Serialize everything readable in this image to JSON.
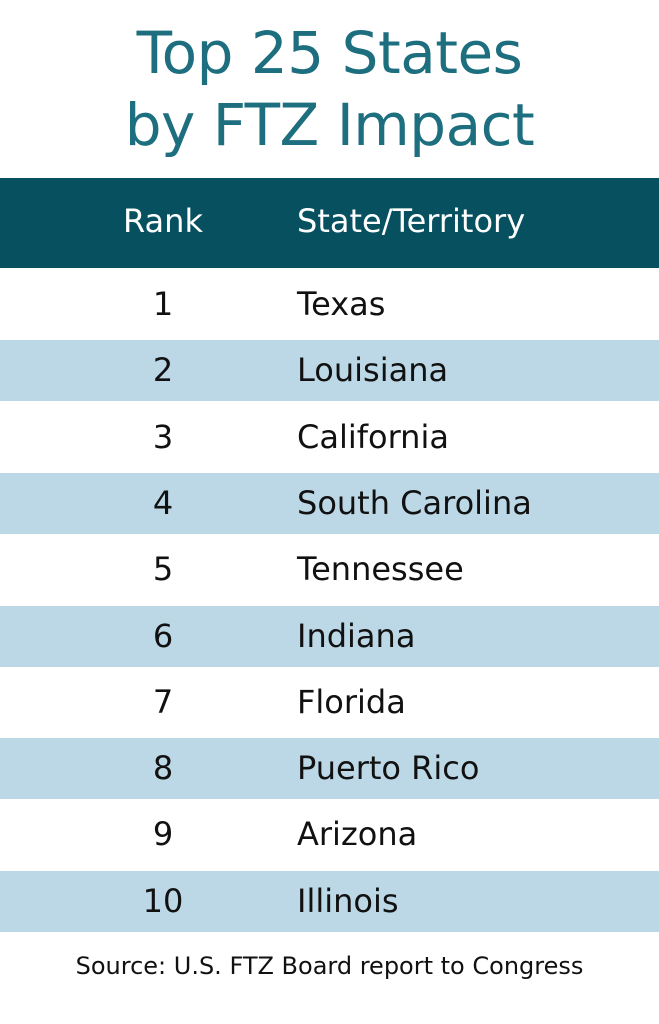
{
  "header": {
    "title": [
      "Top 25 States",
      "by FTZ Impact"
    ]
  },
  "table": {
    "columns": [
      "Rank",
      "State/Territory"
    ],
    "rows": [
      [
        1,
        "Texas"
      ],
      [
        2,
        "Louisiana"
      ],
      [
        3,
        "California"
      ],
      [
        4,
        "South Carolina"
      ],
      [
        5,
        "Tennessee"
      ],
      [
        6,
        "Indiana"
      ],
      [
        7,
        "Florida"
      ],
      [
        8,
        "Puerto Rico"
      ],
      [
        9,
        "Arizona"
      ],
      [
        10,
        "Illinois"
      ]
    ]
  },
  "footer": {
    "source": "Source: U.S. FTZ Board report to Congress"
  }
}
